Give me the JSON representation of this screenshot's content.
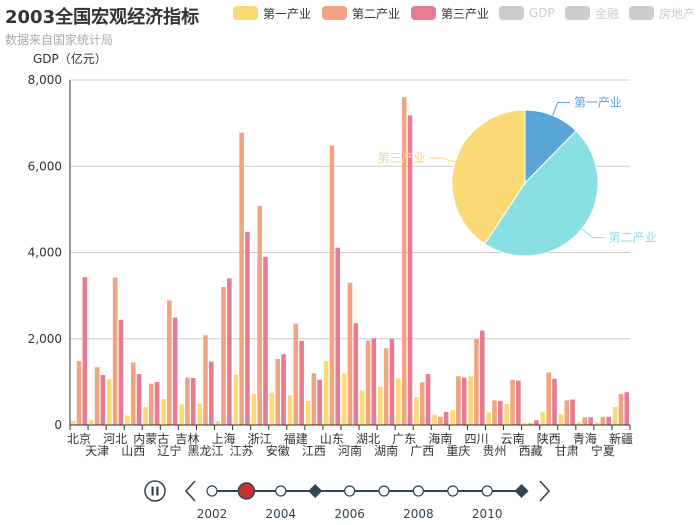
{
  "title": "2003全国宏观经济指标",
  "subtitle": "数据来自国家统计局",
  "legend": {
    "items": [
      {
        "name": "第一产业",
        "color": "#f9da74",
        "active": true
      },
      {
        "name": "第二产业",
        "color": "#f1a482",
        "active": true
      },
      {
        "name": "第三产业",
        "color": "#e67b91",
        "active": true
      },
      {
        "name": "GDP",
        "color": "#cccccc",
        "active": false
      },
      {
        "name": "金融",
        "color": "#cccccc",
        "active": false
      },
      {
        "name": "房地产",
        "color": "#cccccc",
        "active": false
      }
    ]
  },
  "timeline": {
    "years": [
      "2002",
      "2003",
      "2004",
      "2005",
      "2006",
      "2007",
      "2008",
      "2009",
      "2010",
      "2011"
    ],
    "labeled": [
      "2002",
      "2004",
      "2006",
      "2008",
      "2010"
    ],
    "current_index": 1,
    "diamond_indices": [
      3,
      9
    ],
    "play_icon": "pause-icon",
    "prev_icon": "chevron-left-icon",
    "next_icon": "chevron-right-icon",
    "color": "#304654",
    "current_color": "#c23531"
  },
  "chart_data": [
    {
      "type": "bar",
      "ylabel": "GDP（亿元）",
      "ylim": [
        0,
        8000
      ],
      "yticks": [
        0,
        2000,
        4000,
        6000,
        8000
      ],
      "ytick_labels": [
        "0",
        "2,000",
        "4,000",
        "6,000",
        "8,000"
      ],
      "grid": true,
      "categories": [
        "北京",
        "天津",
        "河北",
        "山西",
        "内蒙古",
        "辽宁",
        "吉林",
        "黑龙江",
        "上海",
        "江苏",
        "浙江",
        "安徽",
        "福建",
        "江西",
        "山东",
        "河南",
        "湖北",
        "湖南",
        "广东",
        "广西",
        "海南",
        "重庆",
        "四川",
        "贵州",
        "云南",
        "西藏",
        "陕西",
        "甘肃",
        "青海",
        "宁夏",
        "新疆"
      ],
      "series": [
        {
          "name": "第一产业",
          "color": "#f9da74",
          "values": [
            95,
            120,
            1060,
            220,
            420,
            600,
            480,
            500,
            90,
            1170,
            720,
            750,
            690,
            560,
            1480,
            1200,
            800,
            890,
            1080,
            650,
            240,
            340,
            1130,
            290,
            490,
            50,
            300,
            250,
            60,
            60,
            420
          ]
        },
        {
          "name": "第二产业",
          "color": "#f1a482",
          "values": [
            1480,
            1340,
            3420,
            1450,
            960,
            2890,
            1100,
            2080,
            3200,
            6780,
            5080,
            1530,
            2350,
            1200,
            6480,
            3300,
            1960,
            1780,
            7600,
            990,
            190,
            1130,
            2000,
            570,
            1050,
            40,
            1220,
            570,
            180,
            190,
            720
          ]
        },
        {
          "name": "第三产业",
          "color": "#e67b91",
          "values": [
            3430,
            1160,
            2440,
            1180,
            1000,
            2490,
            1090,
            1470,
            3400,
            4480,
            3900,
            1640,
            1950,
            1050,
            4110,
            2360,
            2010,
            2000,
            7180,
            1180,
            300,
            1100,
            2190,
            560,
            1030,
            110,
            1070,
            590,
            180,
            190,
            760
          ]
        }
      ]
    },
    {
      "type": "pie",
      "labels": [
        "第一产业",
        "第二产业",
        "第三产业"
      ],
      "values": [
        16970,
        64620,
        56010
      ],
      "colors": [
        "#58a5d6",
        "#8adfe2",
        "#f9da74"
      ]
    }
  ]
}
